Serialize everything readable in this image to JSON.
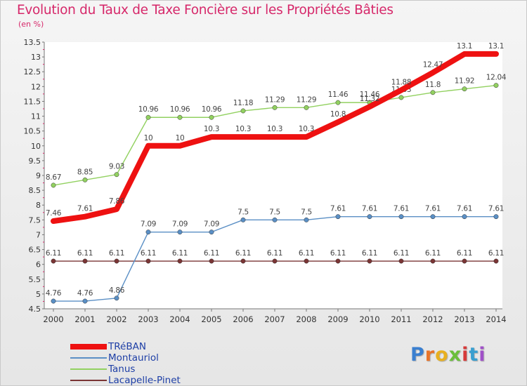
{
  "title": "Evolution du Taux de Taxe Foncière sur les Propriétés Bâties",
  "unit_label": "(en %)",
  "logo_text": "Proxiti",
  "chart_data": {
    "type": "line",
    "title": "Evolution du Taux de Taxe Foncière sur les Propriétés Bâties",
    "ylabel": "(en %)",
    "xlabel": "",
    "ylim": [
      4.5,
      13.5
    ],
    "grid": false,
    "legend_position": "bottom-left",
    "x": [
      "2000",
      "2001",
      "2002",
      "2003",
      "2004",
      "2005",
      "2006",
      "2007",
      "2008",
      "2009",
      "2010",
      "2011",
      "2012",
      "2013",
      "2014"
    ],
    "y_ticks": [
      "4.5",
      "5",
      "5.5",
      "6",
      "6.5",
      "7",
      "7.5",
      "8",
      "8.5",
      "9",
      "9.5",
      "10",
      "10.5",
      "11",
      "11.5",
      "12",
      "12.5",
      "13",
      "13.5"
    ],
    "series": [
      {
        "name": "TRéBAN",
        "color": "#ee1111",
        "values": [
          7.46,
          7.61,
          7.86,
          10,
          10,
          10.3,
          10.3,
          10.3,
          10.3,
          10.8,
          11.32,
          11.88,
          12.47,
          13.1,
          13.1
        ],
        "labels": [
          "7.46",
          "7.61",
          "7.86",
          "10",
          "10",
          "10.3",
          "10.3",
          "10.3",
          "10.3",
          "10.8",
          "11.32",
          "11.88",
          "12.47",
          "13.1",
          "13.1"
        ]
      },
      {
        "name": "Montauriol",
        "color": "#5a8fc5",
        "values": [
          4.76,
          4.76,
          4.86,
          7.09,
          7.09,
          7.09,
          7.5,
          7.5,
          7.5,
          7.61,
          7.61,
          7.61,
          7.61,
          7.61,
          7.61
        ],
        "labels": [
          "4.76",
          "4.76",
          "4.86",
          "7.09",
          "7.09",
          "7.09",
          "7.5",
          "7.5",
          "7.5",
          "7.61",
          "7.61",
          "7.61",
          "7.61",
          "7.61",
          "7.61"
        ]
      },
      {
        "name": "Tanus",
        "color": "#92d160",
        "values": [
          8.67,
          8.85,
          9.03,
          10.96,
          10.96,
          10.96,
          11.18,
          11.29,
          11.29,
          11.46,
          11.46,
          11.63,
          11.8,
          11.92,
          12.04
        ],
        "labels": [
          "8.67",
          "8.85",
          "9.03",
          "10.96",
          "10.96",
          "10.96",
          "11.18",
          "11.29",
          "11.29",
          "11.46",
          "11.46",
          "11.63",
          "11.8",
          "11.92",
          "12.04"
        ]
      },
      {
        "name": "Lacapelle-Pinet",
        "color": "#7a3535",
        "values": [
          6.11,
          6.11,
          6.11,
          6.11,
          6.11,
          6.11,
          6.11,
          6.11,
          6.11,
          6.11,
          6.11,
          6.11,
          6.11,
          6.11,
          6.11
        ],
        "labels": [
          "6.11",
          "6.11",
          "6.11",
          "6.11",
          "6.11",
          "6.11",
          "6.11",
          "6.11",
          "6.11",
          "6.11",
          "6.11",
          "6.11",
          "6.11",
          "6.11",
          "6.11"
        ]
      }
    ]
  }
}
